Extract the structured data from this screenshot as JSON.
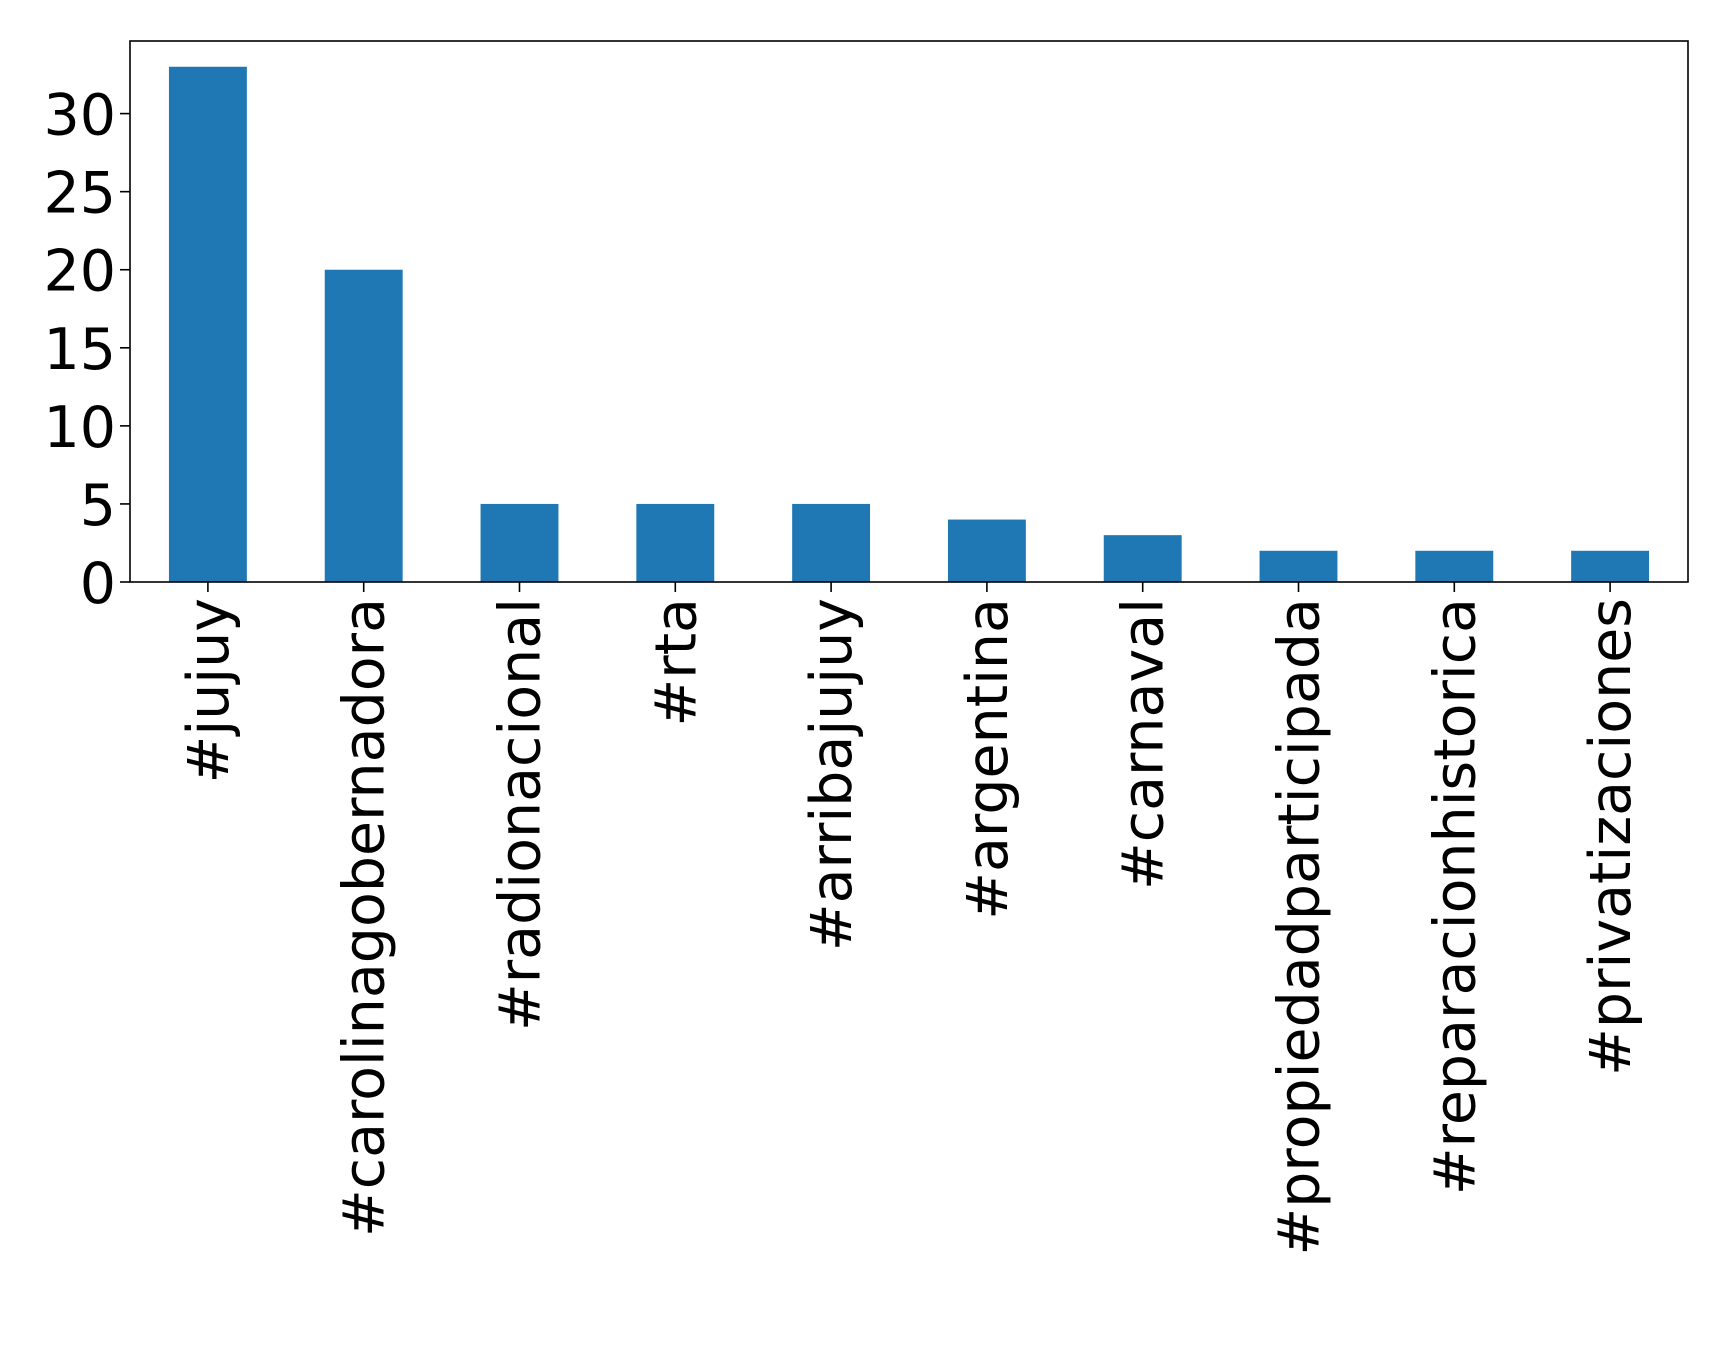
{
  "chart_data": {
    "type": "bar",
    "title": "",
    "xlabel": "",
    "ylabel": "",
    "categories": [
      "#jujuy",
      "#carolinagobernadora",
      "#radionacional",
      "#rta",
      "#arribajujuy",
      "#argentina",
      "#carnaval",
      "#propiedadparticipada",
      "#reparacionhistorica",
      "#privatizaciones"
    ],
    "values": [
      33,
      20,
      5,
      5,
      5,
      4,
      3,
      2,
      2,
      2
    ],
    "ylim": [
      0,
      34.65
    ],
    "yticks": [
      0,
      5,
      10,
      15,
      20,
      25,
      30
    ],
    "grid": false,
    "legend": "none",
    "bar_color": "#1f77b4"
  }
}
